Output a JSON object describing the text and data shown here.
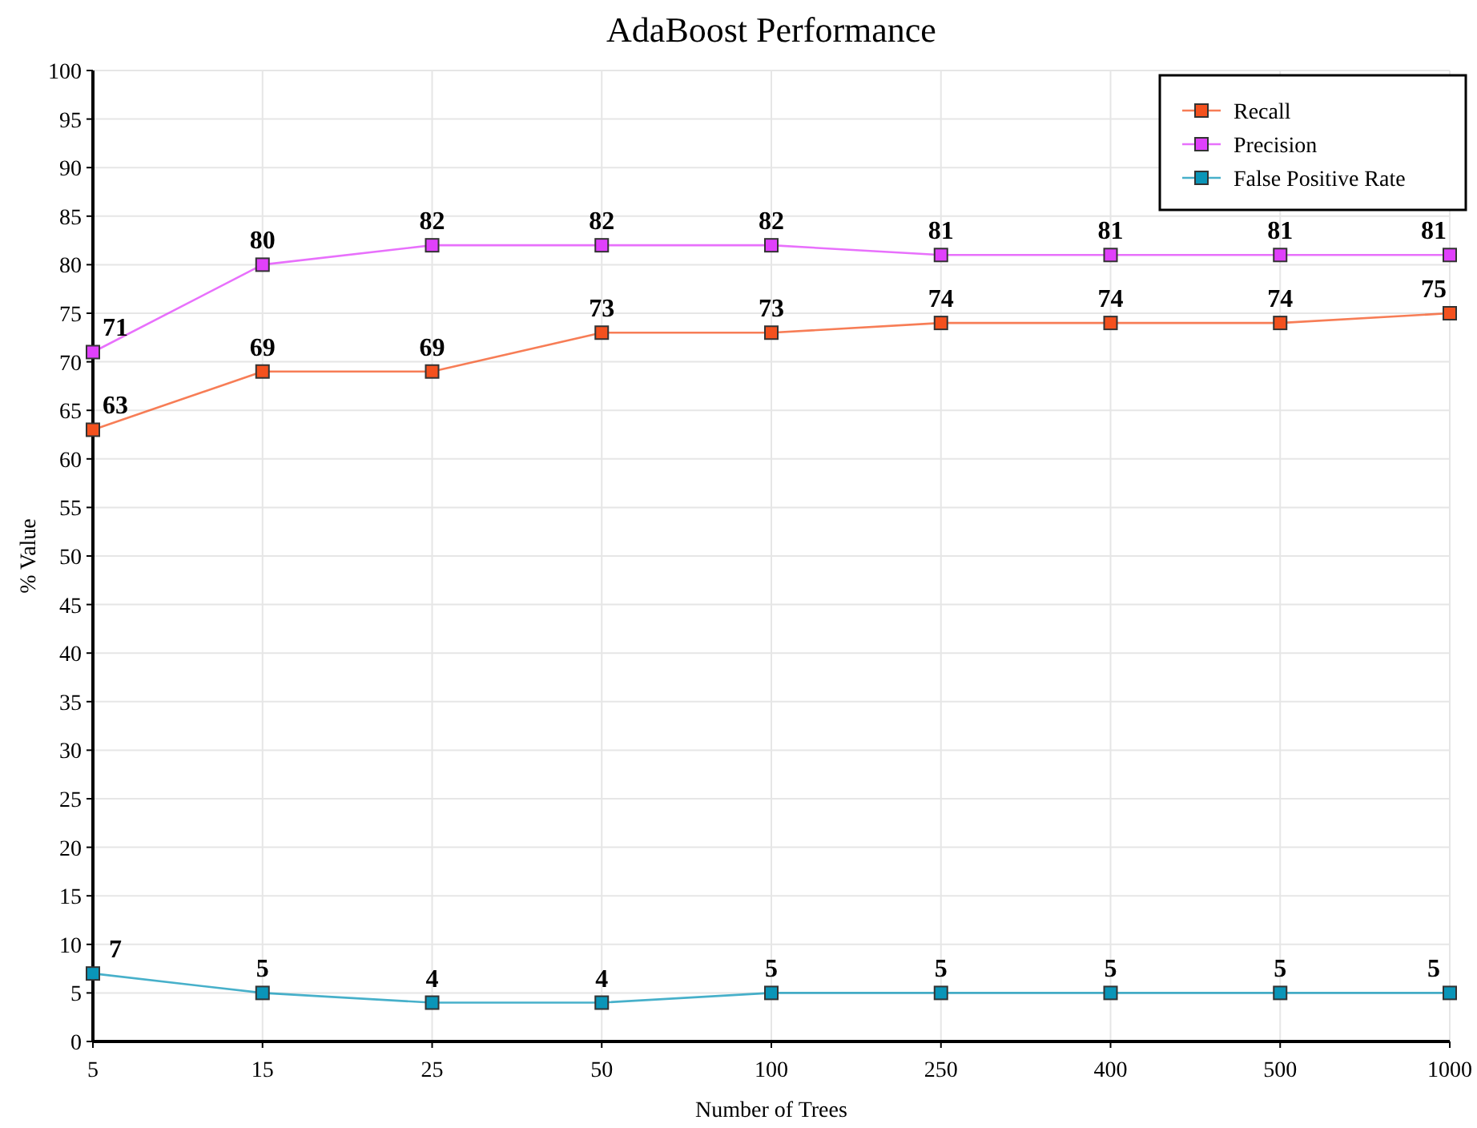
{
  "chart_data": {
    "type": "line",
    "title": "AdaBoost Performance",
    "xlabel": "Number of Trees",
    "ylabel": "% Value",
    "categories": [
      "5",
      "15",
      "25",
      "50",
      "100",
      "250",
      "400",
      "500",
      "1000"
    ],
    "series": [
      {
        "name": "Recall",
        "color": "#f4511e",
        "values": [
          63,
          69,
          69,
          73,
          73,
          74,
          74,
          74,
          75
        ]
      },
      {
        "name": "Precision",
        "color": "#e040fb",
        "values": [
          71,
          80,
          82,
          82,
          82,
          81,
          81,
          81,
          81
        ]
      },
      {
        "name": "False Positive Rate",
        "color": "#0a95b8",
        "values": [
          7,
          5,
          4,
          4,
          5,
          5,
          5,
          5,
          5
        ]
      }
    ],
    "ylim": [
      0,
      100
    ],
    "yticks": [
      0,
      5,
      10,
      15,
      20,
      25,
      30,
      35,
      40,
      45,
      50,
      55,
      60,
      65,
      70,
      75,
      80,
      85,
      90,
      95,
      100
    ],
    "grid": true,
    "legend": "top right",
    "marker": "square",
    "line_style": "solid",
    "data_labels": true
  }
}
